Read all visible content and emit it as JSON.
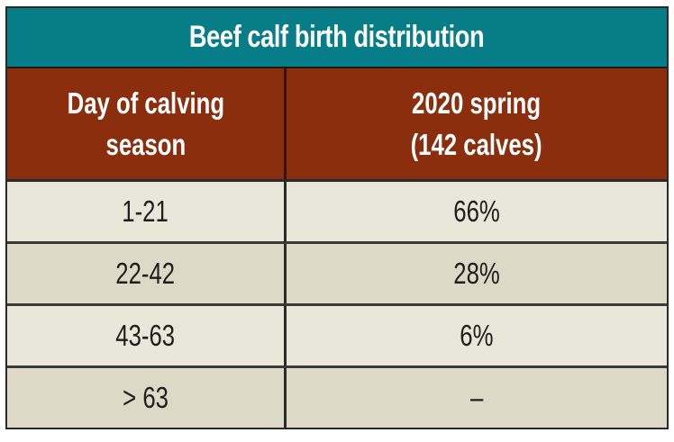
{
  "table": {
    "title": "Beef calf birth distribution",
    "columns": [
      {
        "line1": "Day of calving",
        "line2": "season"
      },
      {
        "line1": "2020 spring",
        "line2": "(142 calves)"
      }
    ],
    "rows": [
      {
        "day": "1-21",
        "value": "66%"
      },
      {
        "day": "22-42",
        "value": "28%"
      },
      {
        "day": "43-63",
        "value": "6%"
      },
      {
        "day": "> 63",
        "value": "–"
      }
    ],
    "colors": {
      "title_bg": "#077d87",
      "header_bg": "#8a2e0e",
      "row_light": "#e9e6da",
      "row_dark": "#ded8c6"
    }
  }
}
